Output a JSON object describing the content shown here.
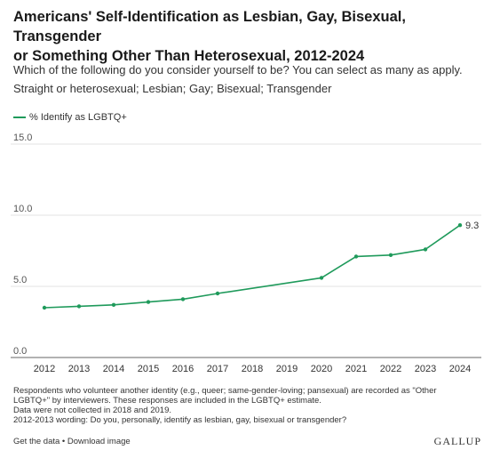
{
  "header": {
    "title_line1": "Americans' Self-Identification as Lesbian, Gay, Bisexual, Transgender",
    "title_line2": "or Something Other Than Heterosexual, 2012-2024",
    "question": "Which of the following do you consider yourself to be? You can select as many as apply.",
    "options": "Straight or heterosexual; Lesbian; Gay; Bisexual; Transgender"
  },
  "legend": {
    "label": "% Identify as LGBTQ+"
  },
  "chart_data": {
    "type": "line",
    "title": "Americans' Self-Identification as Lesbian, Gay, Bisexual, Transgender or Something Other Than Heterosexual, 2012-2024",
    "xlabel": "",
    "ylabel": "",
    "x": [
      "2012",
      "2013",
      "2014",
      "2015",
      "2016",
      "2017",
      "2020",
      "2021",
      "2022",
      "2023",
      "2024"
    ],
    "x_ticks": [
      "2012",
      "2013",
      "2014",
      "2015",
      "2016",
      "2017",
      "2018",
      "2019",
      "2020",
      "2021",
      "2022",
      "2023",
      "2024"
    ],
    "y_ticks": [
      "0.0",
      "5.0",
      "10.0",
      "15.0"
    ],
    "ylim": [
      0,
      15
    ],
    "grid": true,
    "legend_position": "top-left",
    "series": [
      {
        "name": "% Identify as LGBTQ+",
        "color": "#1f9a5b",
        "values": [
          3.5,
          3.6,
          3.7,
          3.9,
          4.1,
          4.5,
          5.6,
          7.1,
          7.2,
          7.6,
          9.3
        ]
      }
    ],
    "annotations": [
      {
        "x": "2024",
        "text": "9.3"
      }
    ]
  },
  "notes": {
    "line1": "Respondents who volunteer another identity (e.g., queer; same-gender-loving; pansexual) are recorded as \"Other",
    "line2": "LGBTQ+\" by interviewers. These responses are included in the LGBTQ+ estimate.",
    "line3": "Data were not collected in 2018 and 2019.",
    "line4": "2012-2013 wording: Do you, personally, identify as lesbian, gay, bisexual or transgender?"
  },
  "footer": {
    "get_data": "Get the data",
    "separator": " • ",
    "download": "Download image",
    "brand": "GALLUP"
  }
}
